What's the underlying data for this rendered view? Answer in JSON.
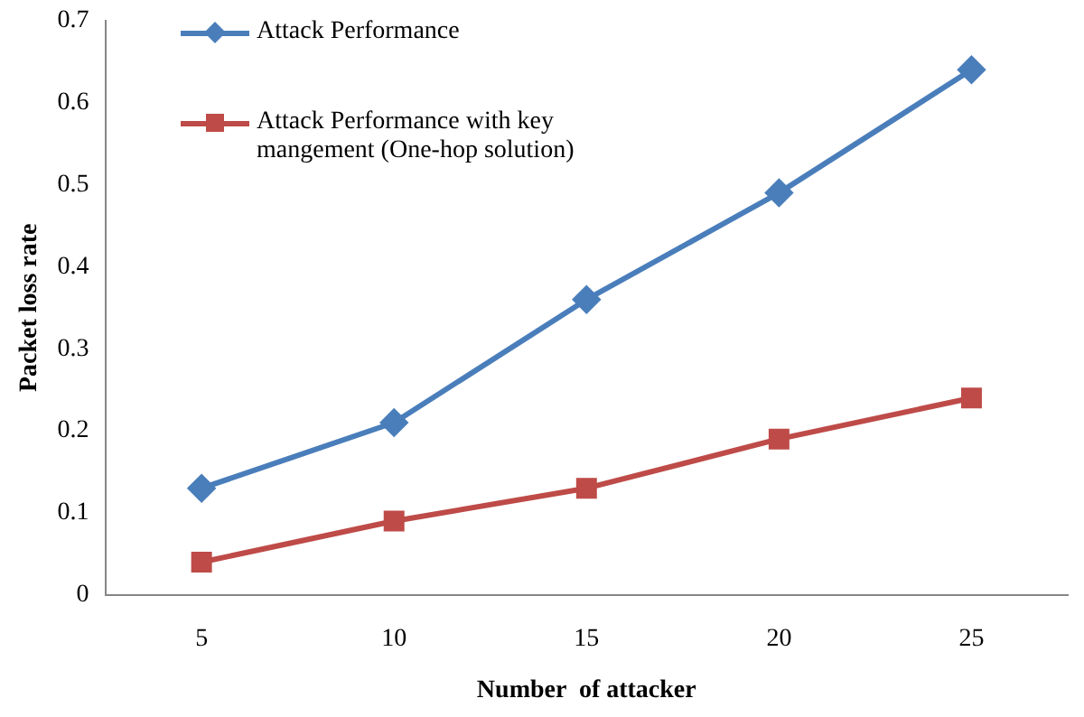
{
  "chart_data": {
    "type": "line",
    "xlabel": "Number  of attacker",
    "ylabel": "Packet loss rate",
    "categories": [
      "5",
      "10",
      "15",
      "20",
      "25"
    ],
    "series": [
      {
        "name": "Attack Performance",
        "color": "#4a7ebb",
        "marker": "diamond",
        "values": [
          0.13,
          0.21,
          0.36,
          0.49,
          0.64
        ]
      },
      {
        "name": "Attack Performance with key mangement (One-hop solution)",
        "color": "#be4b48",
        "marker": "square",
        "values": [
          0.04,
          0.09,
          0.13,
          0.19,
          0.24
        ]
      }
    ],
    "ylim": [
      0,
      0.7
    ],
    "yticks": [
      0,
      0.1,
      0.2,
      0.3,
      0.4,
      0.5,
      0.6,
      0.7
    ],
    "grid": false,
    "legend": "top left",
    "line_style": "solid"
  }
}
